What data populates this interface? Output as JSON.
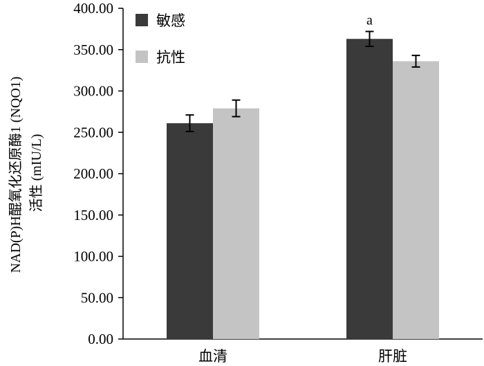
{
  "chart_data": {
    "type": "bar",
    "title": "",
    "xlabel": "",
    "ylabel_lines": [
      "NAD(P)H醌氧化还原酶1 (NQO1)",
      "活性 (mIU/L)"
    ],
    "categories": [
      "血清",
      "肝脏"
    ],
    "series": [
      {
        "name": "敏感",
        "color": "#3a3a3a",
        "values": [
          261,
          363
        ],
        "errors": [
          10,
          9
        ]
      },
      {
        "name": "抗性",
        "color": "#c4c4c4",
        "values": [
          279,
          336
        ],
        "errors": [
          10,
          7
        ]
      }
    ],
    "ylim": [
      0,
      400
    ],
    "yticks": [
      "0.00",
      "50.00",
      "100.00",
      "150.00",
      "200.00",
      "250.00",
      "300.00",
      "350.00",
      "400.00"
    ],
    "annotations": [
      {
        "category_index": 1,
        "series_index": 0,
        "text": "a"
      }
    ],
    "legend_position": "top-left",
    "grid": false
  }
}
